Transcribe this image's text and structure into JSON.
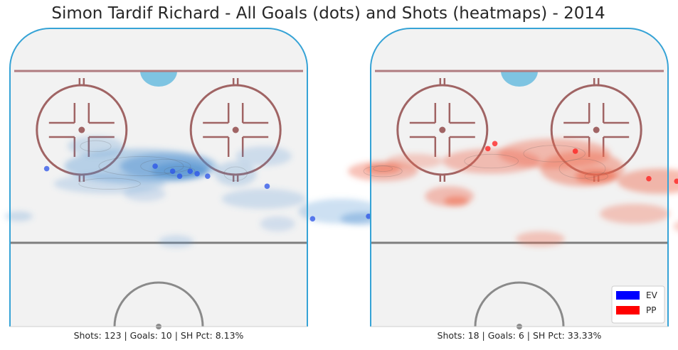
{
  "chart_data": {
    "type": "scatter",
    "title": "Simon Tardif Richard - All Goals (dots) and Shots (heatmaps) - 2014",
    "legend": {
      "placement": "bottom-right",
      "entries": [
        {
          "label": "EV",
          "color": "#0000ff"
        },
        {
          "label": "PP",
          "color": "#ff0000"
        }
      ]
    },
    "panels": [
      {
        "name": "EV",
        "caption": "Shots: 123 | Goals: 10 | SH Pct: 8.13%",
        "dot_color": "#2a52e8",
        "goals": [
          {
            "x": -32,
            "y": 63
          },
          {
            "x": -1,
            "y": 64
          },
          {
            "x": 4,
            "y": 62
          },
          {
            "x": 9,
            "y": 62
          },
          {
            "x": 11,
            "y": 61
          },
          {
            "x": 6,
            "y": 60
          },
          {
            "x": 14,
            "y": 60
          },
          {
            "x": 31,
            "y": 56
          },
          {
            "x": 44,
            "y": 43
          },
          {
            "x": 60,
            "y": 44
          }
        ]
      },
      {
        "name": "PP",
        "caption": "Shots: 18 | Goals: 6 | SH Pct: 33.33%",
        "dot_color": "#ff1a1a",
        "goals": [
          {
            "x": -7,
            "y": 73
          },
          {
            "x": -9,
            "y": 71
          },
          {
            "x": 16,
            "y": 70
          },
          {
            "x": 37,
            "y": 59
          },
          {
            "x": 45,
            "y": 58
          },
          {
            "x": 54,
            "y": 52
          }
        ]
      }
    ]
  },
  "colors": {
    "board": "#36a3d6",
    "blue_line": "#b07c80",
    "circle": "#a06464",
    "center_line": "#7f7f7f",
    "ice": "#f2f2f2",
    "crease": "#7ec4e2"
  }
}
